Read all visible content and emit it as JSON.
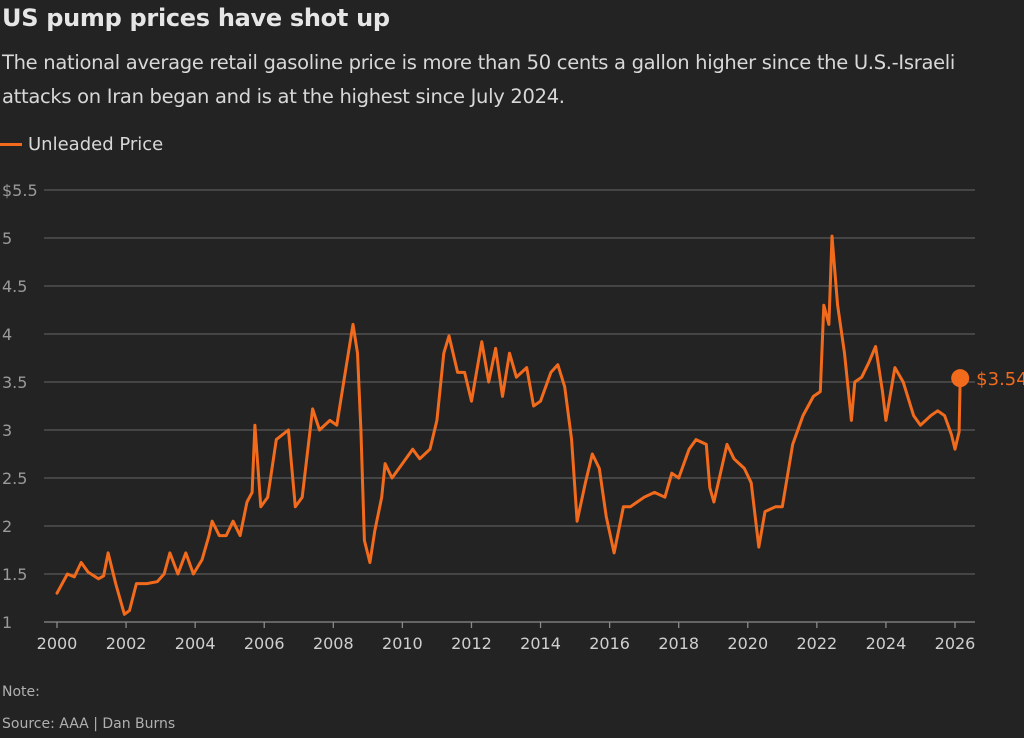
{
  "chart_data": {
    "type": "line",
    "title": "US pump prices have shot up",
    "subtitle": "The national average retail gasoline price is more than 50 cents a gallon higher since the U.S.-Israeli attacks on Iran began and is at the highest since July 2024.",
    "legend": {
      "placement": "top-left",
      "entries": [
        "Unleaded Price"
      ]
    },
    "xlabel": "",
    "ylabel": "",
    "xlim": [
      2000,
      2026.6
    ],
    "ylim": [
      1,
      5.5
    ],
    "grid": true,
    "x_ticks": [
      2000,
      2002,
      2004,
      2006,
      2008,
      2010,
      2012,
      2014,
      2016,
      2018,
      2020,
      2022,
      2024,
      2026
    ],
    "x_tick_labels": [
      "2000",
      "2002",
      "2004",
      "2006",
      "2008",
      "2010",
      "2012",
      "2014",
      "2016",
      "2018",
      "2020",
      "2022",
      "2024",
      "2026"
    ],
    "y_ticks": [
      1,
      1.5,
      2,
      2.5,
      3,
      3.5,
      4,
      4.5,
      5,
      5.5
    ],
    "y_tick_labels": [
      "1",
      "1.5",
      "2",
      "2.5",
      "3",
      "3.5",
      "4",
      "4.5",
      "5",
      "$5.5"
    ],
    "series": [
      {
        "name": "Unleaded Price",
        "color": "#f26b1d",
        "x": [
          2000.0,
          2000.3,
          2000.5,
          2000.7,
          2000.9,
          2001.2,
          2001.35,
          2001.48,
          2001.7,
          2001.95,
          2002.1,
          2002.3,
          2002.6,
          2002.9,
          2003.1,
          2003.27,
          2003.5,
          2003.73,
          2003.95,
          2004.2,
          2004.4,
          2004.49,
          2004.7,
          2004.9,
          2005.1,
          2005.3,
          2005.5,
          2005.65,
          2005.73,
          2005.9,
          2006.1,
          2006.35,
          2006.7,
          2006.9,
          2007.1,
          2007.4,
          2007.6,
          2007.9,
          2008.1,
          2008.3,
          2008.57,
          2008.7,
          2008.8,
          2008.9,
          2009.06,
          2009.2,
          2009.4,
          2009.5,
          2009.7,
          2010.0,
          2010.3,
          2010.5,
          2010.8,
          2011.0,
          2011.2,
          2011.35,
          2011.6,
          2011.8,
          2012.0,
          2012.3,
          2012.5,
          2012.7,
          2012.9,
          2013.1,
          2013.3,
          2013.6,
          2013.8,
          2014.0,
          2014.3,
          2014.5,
          2014.7,
          2014.9,
          2015.06,
          2015.3,
          2015.5,
          2015.7,
          2015.9,
          2016.13,
          2016.4,
          2016.6,
          2016.8,
          2017.0,
          2017.3,
          2017.6,
          2017.8,
          2018.0,
          2018.3,
          2018.5,
          2018.8,
          2018.9,
          2019.02,
          2019.4,
          2019.6,
          2019.9,
          2020.1,
          2020.32,
          2020.5,
          2020.8,
          2021.0,
          2021.3,
          2021.6,
          2021.9,
          2022.1,
          2022.2,
          2022.35,
          2022.44,
          2022.6,
          2022.8,
          2023.0,
          2023.1,
          2023.3,
          2023.5,
          2023.7,
          2023.9,
          2024.0,
          2024.26,
          2024.5,
          2024.8,
          2025.0,
          2025.3,
          2025.5,
          2025.7,
          2025.9,
          2026.0,
          2026.12,
          2026.15
        ],
        "values": [
          1.3,
          1.5,
          1.47,
          1.62,
          1.52,
          1.45,
          1.48,
          1.72,
          1.4,
          1.08,
          1.12,
          1.4,
          1.4,
          1.42,
          1.5,
          1.72,
          1.5,
          1.72,
          1.5,
          1.65,
          1.9,
          2.05,
          1.9,
          1.9,
          2.05,
          1.9,
          2.25,
          2.35,
          3.05,
          2.2,
          2.3,
          2.9,
          3.0,
          2.2,
          2.3,
          3.22,
          3.0,
          3.1,
          3.05,
          3.5,
          4.1,
          3.8,
          3.0,
          1.85,
          1.62,
          1.95,
          2.3,
          2.65,
          2.5,
          2.65,
          2.8,
          2.7,
          2.8,
          3.1,
          3.8,
          3.98,
          3.6,
          3.6,
          3.3,
          3.92,
          3.5,
          3.85,
          3.35,
          3.8,
          3.55,
          3.65,
          3.25,
          3.3,
          3.6,
          3.68,
          3.45,
          2.9,
          2.05,
          2.45,
          2.75,
          2.6,
          2.1,
          1.72,
          2.2,
          2.2,
          2.25,
          2.3,
          2.35,
          2.3,
          2.55,
          2.5,
          2.8,
          2.9,
          2.85,
          2.4,
          2.25,
          2.85,
          2.7,
          2.6,
          2.45,
          1.78,
          2.15,
          2.2,
          2.2,
          2.85,
          3.15,
          3.35,
          3.4,
          4.3,
          4.1,
          5.02,
          4.3,
          3.8,
          3.1,
          3.5,
          3.55,
          3.7,
          3.87,
          3.4,
          3.1,
          3.65,
          3.5,
          3.15,
          3.05,
          3.15,
          3.2,
          3.15,
          2.95,
          2.8,
          2.98,
          3.54
        ]
      }
    ],
    "annotations": [
      {
        "x": 2026.15,
        "y": 3.54,
        "label": "$3.54"
      }
    ]
  },
  "footer": {
    "note": "Note:",
    "source": "Source: AAA | Dan Burns"
  }
}
